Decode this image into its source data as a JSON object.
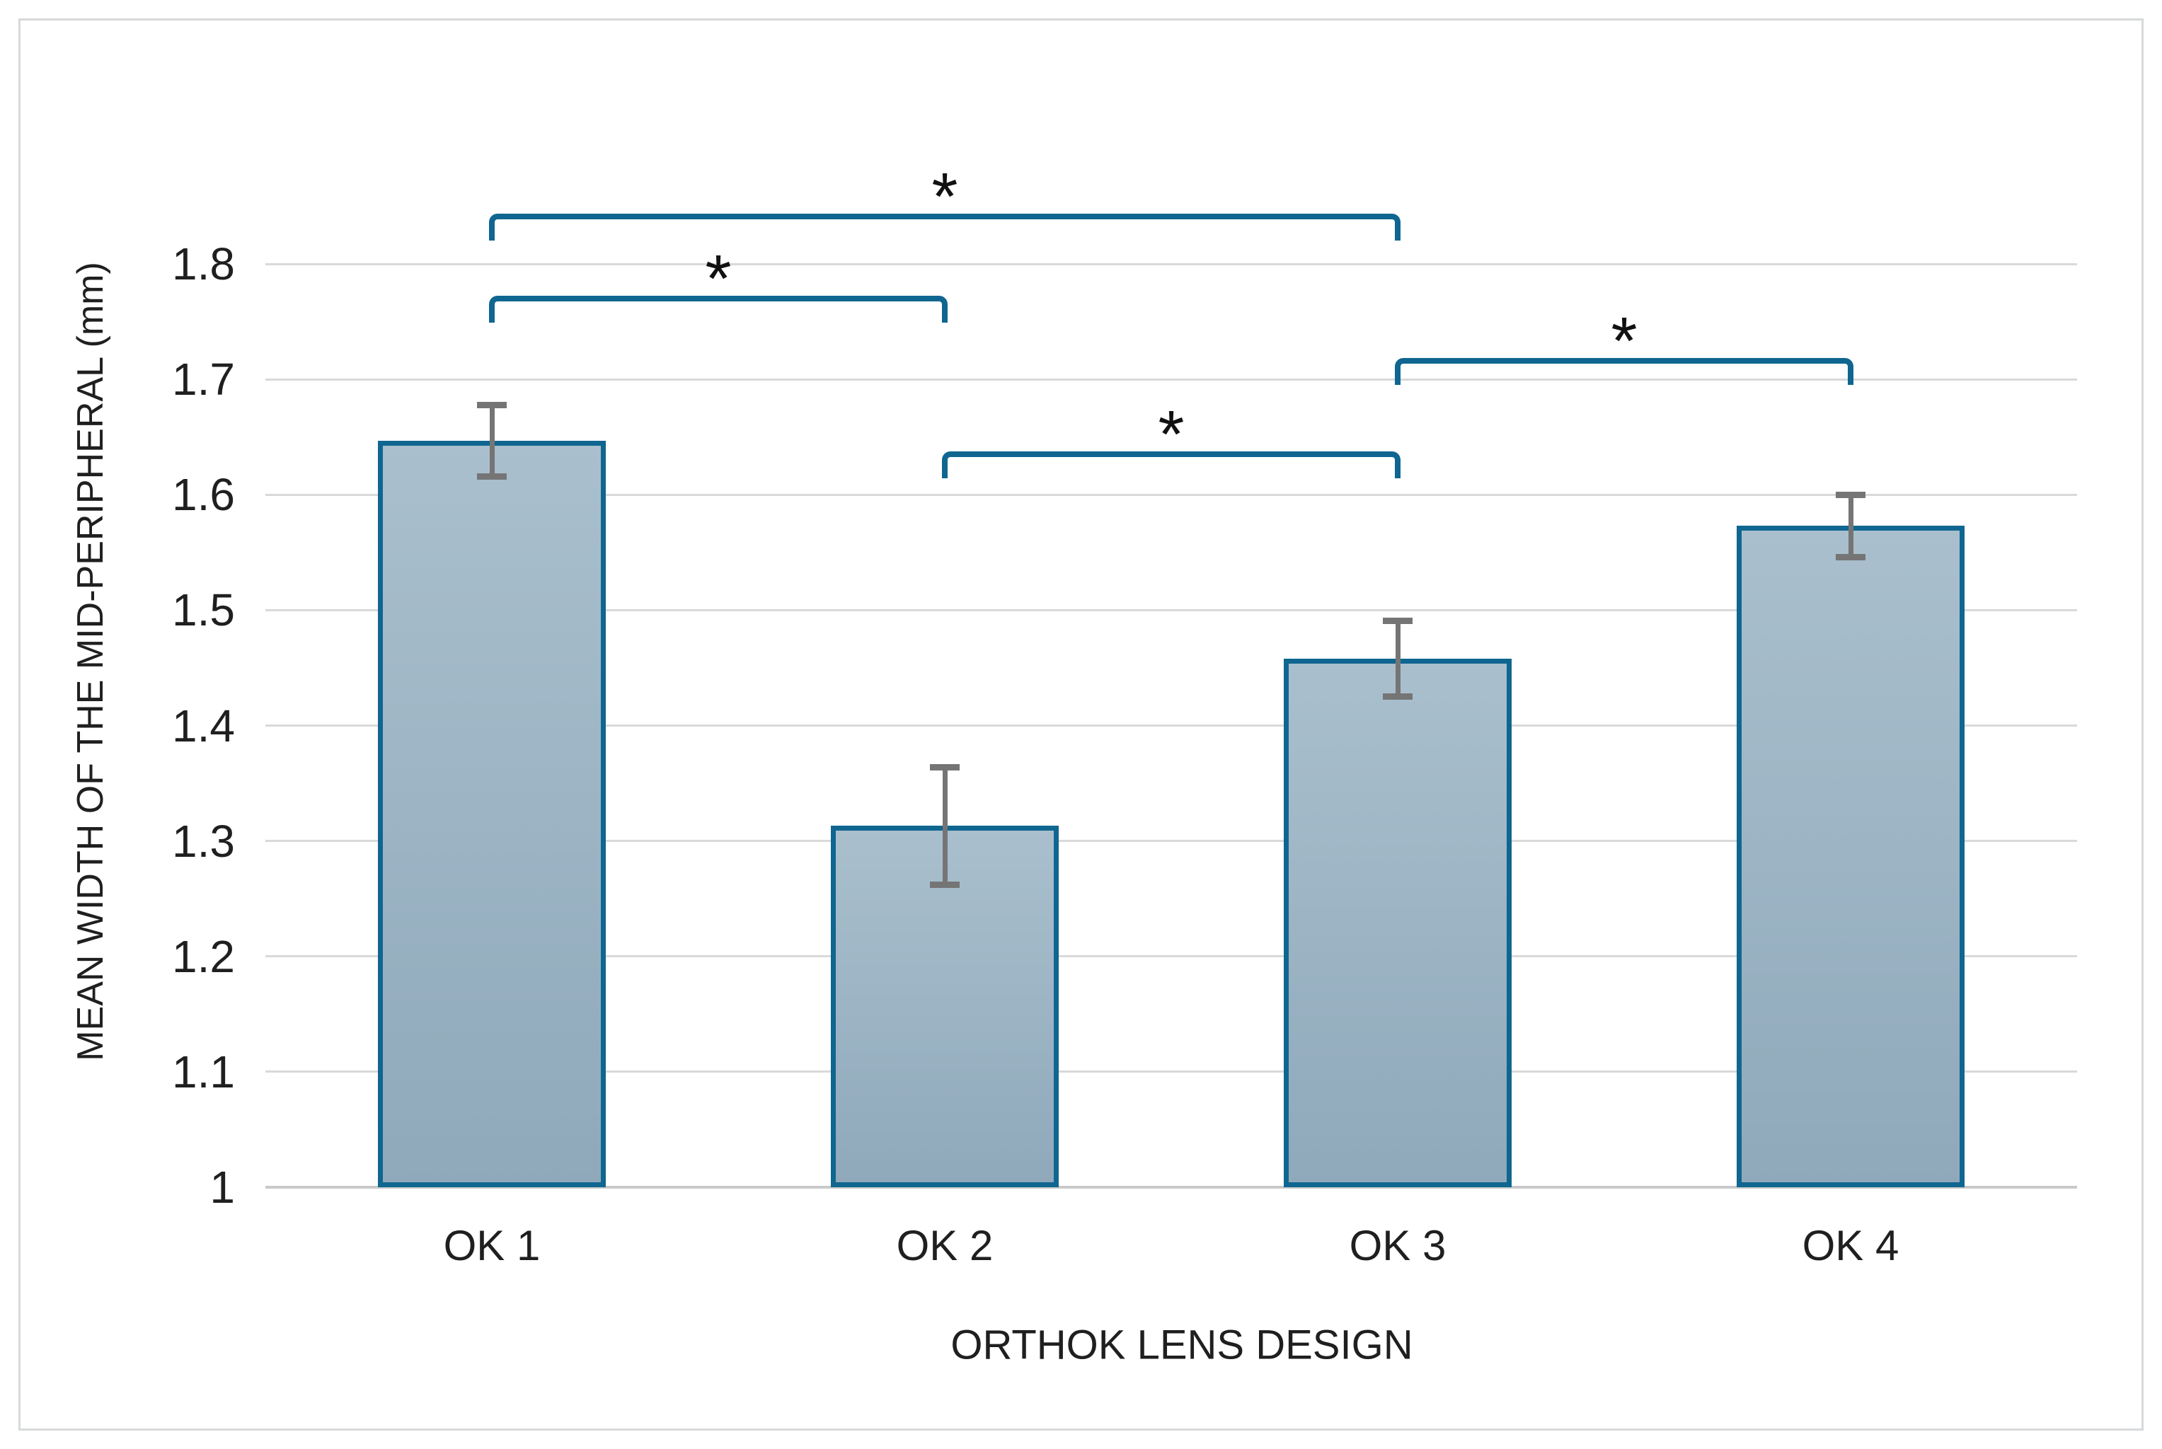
{
  "figure": {
    "background": "#ffffff",
    "border_color": "#d7d9db"
  },
  "chart_data": {
    "type": "bar",
    "title": "",
    "categories": [
      "OK 1",
      "OK 2",
      "OK 3",
      "OK 4"
    ],
    "values": [
      1.647,
      1.313,
      1.458,
      1.573
    ],
    "error_bars": [
      0.031,
      0.051,
      0.033,
      0.027
    ],
    "xlabel": "ORTHOK LENS DESIGN",
    "ylabel": "MEAN WIDTH OF THE MID-PERIPHERAL (mm)",
    "ylim": [
      1,
      1.8
    ],
    "ytick_step": 0.1,
    "ytick_labels": [
      "1",
      "1.1",
      "1.2",
      "1.3",
      "1.4",
      "1.5",
      "1.6",
      "1.7",
      "1.8"
    ],
    "grid": true,
    "legend_position": "none",
    "bar_fill_top": "#a9bfcd",
    "bar_fill_bottom": "#8fa9bb",
    "bar_border_color": "#0f6690",
    "bracket_color": "#0f6690",
    "error_bar_color": "#757575",
    "gridline_color": "#d9d9d9",
    "significance_brackets": [
      {
        "from": "OK 1",
        "to": "OK 3",
        "label": "*",
        "level": 1.841
      },
      {
        "from": "OK 1",
        "to": "OK 2",
        "label": "*",
        "level": 1.77
      },
      {
        "from": "OK 3",
        "to": "OK 4",
        "label": "*",
        "level": 1.716
      },
      {
        "from": "OK 2",
        "to": "OK 3",
        "label": "*",
        "level": 1.635
      }
    ]
  }
}
